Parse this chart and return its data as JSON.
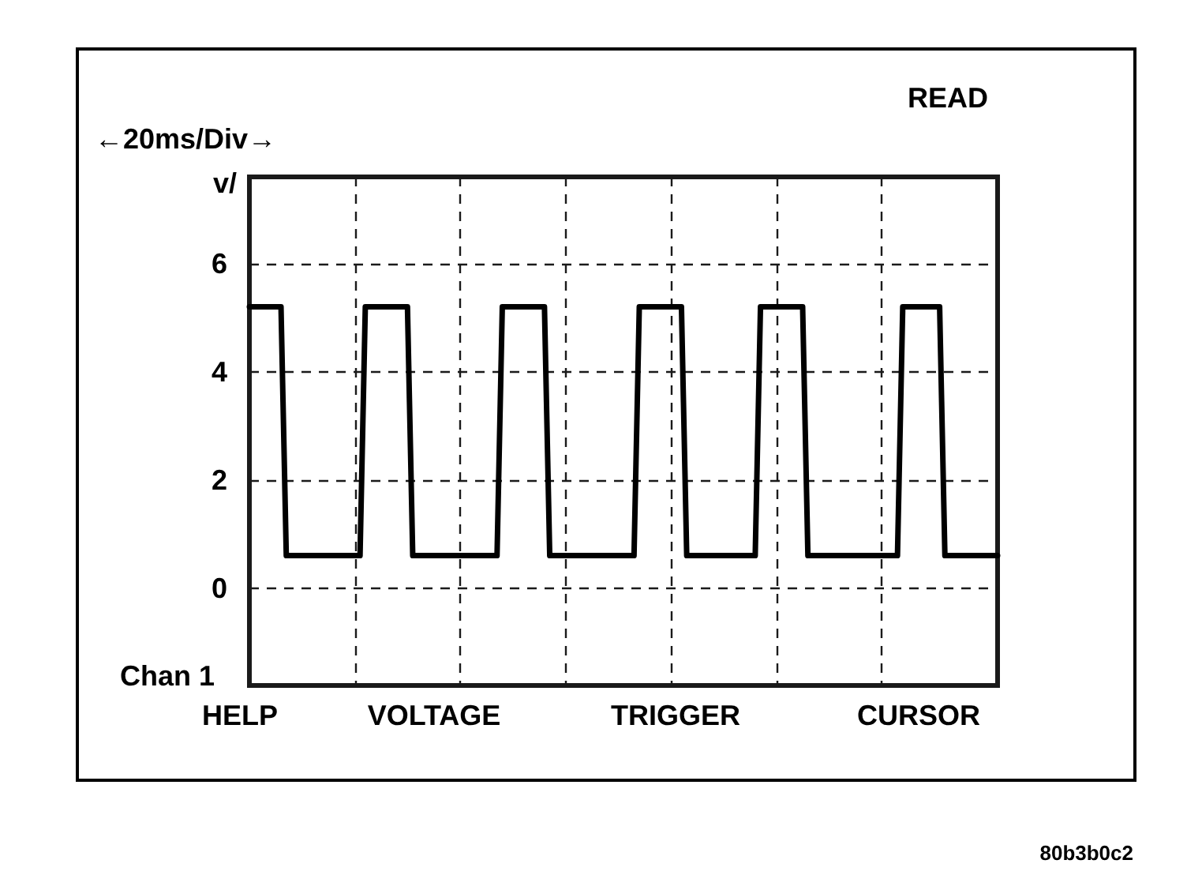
{
  "chart_data": {
    "type": "line",
    "ylabel": "v/",
    "annotations": [
      "READ",
      "←20ms/Div→",
      "Chan 1",
      "HELP",
      "VOLTAGE",
      "TRIGGER",
      "CURSOR",
      "80b3b0c2"
    ],
    "categories": [
      null,
      null,
      null,
      null,
      null,
      null,
      null,
      null,
      null,
      null,
      null,
      null,
      null,
      null,
      null,
      null,
      null,
      null,
      null,
      null,
      null,
      null,
      null,
      null,
      null,
      null,
      null,
      null,
      null,
      null,
      null,
      null,
      null,
      null,
      null,
      null,
      null,
      null,
      null,
      null,
      null,
      null,
      null,
      null,
      null,
      null,
      null,
      null,
      null,
      null,
      null,
      null,
      null,
      null,
      null,
      null,
      null,
      null,
      null,
      null,
      null,
      null,
      null,
      null,
      null,
      null,
      null,
      null,
      null,
      null,
      null,
      null,
      null,
      null,
      null,
      null,
      null,
      null,
      null,
      null,
      null,
      null,
      null,
      null,
      null,
      null,
      null,
      null,
      null,
      null,
      null,
      null,
      null,
      null,
      null,
      null,
      null,
      null,
      null,
      null,
      null,
      null,
      null,
      null,
      null,
      null,
      null,
      null,
      null,
      null,
      null,
      null,
      null,
      null,
      null,
      null,
      null,
      null,
      null,
      null,
      null,
      null,
      null,
      null,
      null,
      null,
      null,
      null,
      null,
      null,
      null,
      null,
      null,
      null,
      null,
      null,
      null,
      null,
      null,
      null,
      null,
      null,
      null
    ],
    "series": [
      {
        "color": "#000000",
        "values": [
          5.2,
          5.2,
          5.2,
          5.2,
          5.2,
          5.2,
          5.2,
          0.6,
          0.6,
          0.6,
          0.6,
          0.6,
          0.6,
          0.6,
          0.6,
          0.6,
          0.6,
          0.6,
          0.6,
          0.6,
          0.6,
          0.6,
          5.2,
          5.2,
          5.2,
          5.2,
          5.2,
          5.2,
          5.2,
          5.2,
          5.2,
          0.6,
          0.6,
          0.6,
          0.6,
          0.6,
          0.6,
          0.6,
          0.6,
          0.6,
          0.6,
          0.6,
          0.6,
          0.6,
          0.6,
          0.6,
          0.6,
          0.6,
          5.2,
          5.2,
          5.2,
          5.2,
          5.2,
          5.2,
          5.2,
          5.2,
          5.2,
          0.6,
          0.6,
          0.6,
          0.6,
          0.6,
          0.6,
          0.6,
          0.6,
          0.6,
          0.6,
          0.6,
          0.6,
          0.6,
          0.6,
          0.6,
          0.6,
          0.6,
          5.2,
          5.2,
          5.2,
          5.2,
          5.2,
          5.2,
          5.2,
          5.2,
          5.2,
          0.6,
          0.6,
          0.6,
          0.6,
          0.6,
          0.6,
          0.6,
          0.6,
          0.6,
          0.6,
          0.6,
          0.6,
          0.6,
          0.6,
          5.2,
          5.2,
          5.2,
          5.2,
          5.2,
          5.2,
          5.2,
          5.2,
          5.2,
          0.6,
          0.6,
          0.6,
          0.6,
          0.6,
          0.6,
          0.6,
          0.6,
          0.6,
          0.6,
          0.6,
          0.6,
          0.6,
          0.6,
          0.6,
          0.6,
          0.6,
          0.6,
          5.2,
          5.2,
          5.2,
          5.2,
          5.2,
          5.2,
          5.2,
          5.2,
          0.6,
          0.6,
          0.6,
          0.6,
          0.6,
          0.6,
          0.6,
          0.6,
          0.6,
          0.6,
          0.6
        ]
      }
    ],
    "ylim": [
      -1.8,
      7.6
    ],
    "yticks": [
      0,
      2,
      4,
      6
    ],
    "tick_labels": "y",
    "grid": true,
    "line_style": "solid"
  }
}
